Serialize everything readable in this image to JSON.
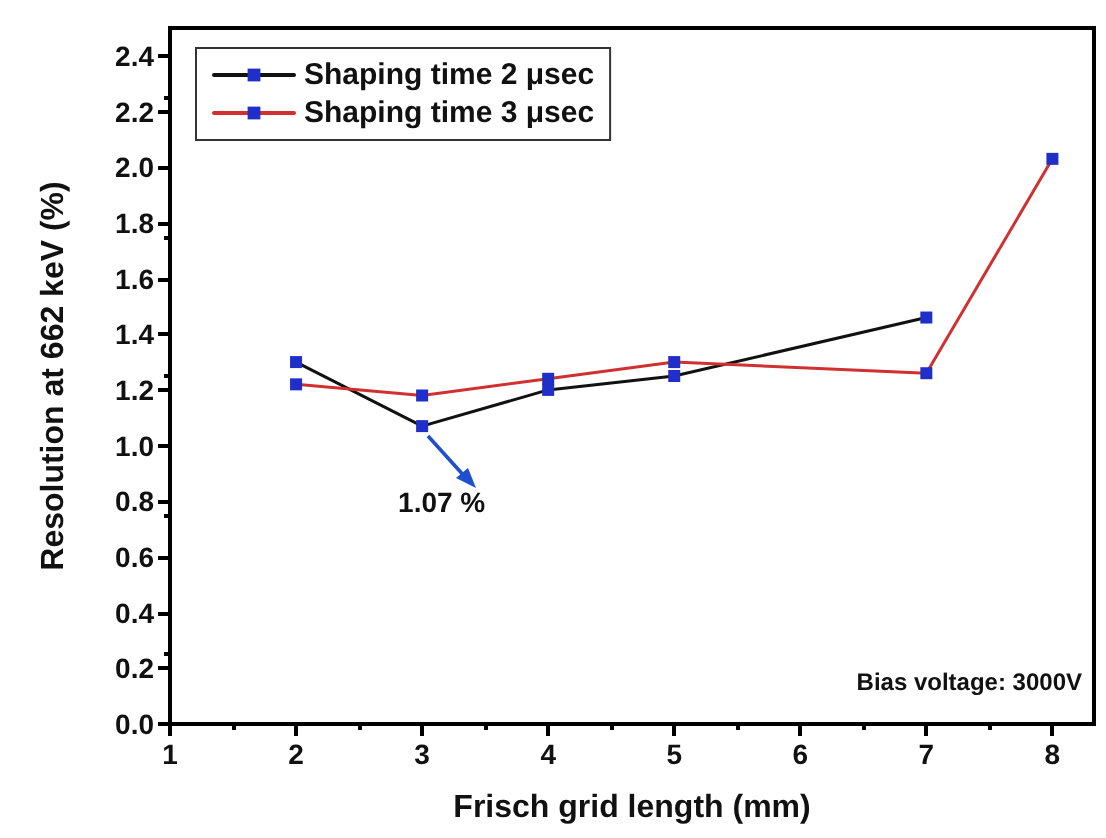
{
  "chart_data": {
    "type": "line",
    "xlabel": "Frisch grid length (mm)",
    "ylabel": "Resolution at 662 keV (%)",
    "series": [
      {
        "name": "Shaping time 2 μsec",
        "color": "#111111",
        "x": [
          2,
          3,
          4,
          5,
          7
        ],
        "values": [
          1.3,
          1.07,
          1.2,
          1.25,
          1.46
        ]
      },
      {
        "name": "Shaping time 3 μsec",
        "color": "#d03030",
        "x": [
          2,
          3,
          4,
          5,
          7,
          8
        ],
        "values": [
          1.22,
          1.18,
          1.24,
          1.3,
          1.26,
          2.03
        ]
      }
    ],
    "xlim": [
      1,
      8.33
    ],
    "xticks": [
      1,
      2,
      3,
      4,
      5,
      6,
      7,
      8
    ],
    "ylim": [
      0,
      2.5
    ],
    "yticks": [
      {
        "value": 0,
        "label": "0.0"
      },
      0.2,
      0.4,
      0.6,
      0.8,
      {
        "value": 1,
        "label": "1.0"
      },
      1.2,
      1.4,
      1.6,
      1.8,
      {
        "value": 2,
        "label": "2.0"
      },
      2.2,
      2.4
    ],
    "annotations": [
      {
        "text": "1.07 %",
        "x": 3,
        "y": 1.07
      },
      "Bias voltage: 3000V"
    ],
    "grid": false,
    "legend": "top left",
    "marker": "square",
    "line_style": "solid"
  }
}
